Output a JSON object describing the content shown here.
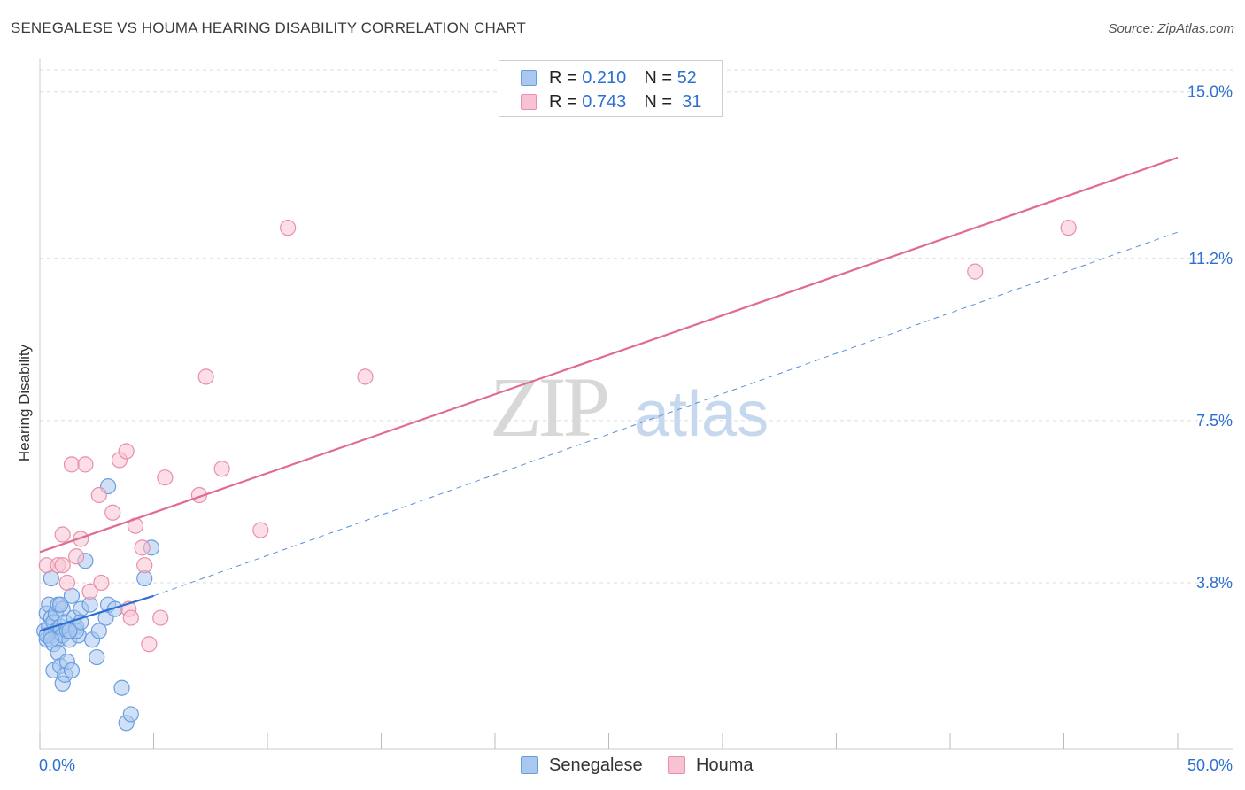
{
  "title": "SENEGALESE VS HOUMA HEARING DISABILITY CORRELATION CHART",
  "source": "Source: ZipAtlas.com",
  "watermark": {
    "zip": "ZIP",
    "atlas": "atlas"
  },
  "legend": {
    "rows": [
      {
        "r_label": "R =",
        "r_value": "0.210",
        "n_label": "N =",
        "n_value": "52",
        "color": "#a9c8f0",
        "border": "#6a9de0"
      },
      {
        "r_label": "R =",
        "r_value": "0.743",
        "n_label": "N =",
        "n_value": "31",
        "color": "#f7c3d2",
        "border": "#e98fab"
      }
    ]
  },
  "bottom_legend": [
    {
      "label": "Senegalese",
      "color": "#a9c8f0",
      "border": "#6a9de0"
    },
    {
      "label": "Houma",
      "color": "#f7c3d2",
      "border": "#e98fab"
    }
  ],
  "chart_data": {
    "type": "scatter",
    "title": "SENEGALESE VS HOUMA HEARING DISABILITY CORRELATION CHART",
    "xlabel": "",
    "ylabel": "Hearing Disability",
    "xlim": [
      0,
      50
    ],
    "ylim": [
      0,
      15.5
    ],
    "x_tick_labels": [
      "0.0%",
      "50.0%"
    ],
    "y_ticks": [
      3.8,
      7.5,
      11.2,
      15.0
    ],
    "y_tick_labels": [
      "3.8%",
      "7.5%",
      "11.2%",
      "15.0%"
    ],
    "grid": true,
    "legend_position": "top-center",
    "series": [
      {
        "name": "Senegalese",
        "color": "#6a9de0",
        "fill": "#a9c8f0",
        "points": [
          [
            0.2,
            2.7
          ],
          [
            0.3,
            3.1
          ],
          [
            0.3,
            2.5
          ],
          [
            0.4,
            2.8
          ],
          [
            0.4,
            3.3
          ],
          [
            0.5,
            2.6
          ],
          [
            0.5,
            3.0
          ],
          [
            0.6,
            2.9
          ],
          [
            0.6,
            2.4
          ],
          [
            0.7,
            3.1
          ],
          [
            0.7,
            2.7
          ],
          [
            0.8,
            2.5
          ],
          [
            0.8,
            3.3
          ],
          [
            0.9,
            2.8
          ],
          [
            1.0,
            2.6
          ],
          [
            1.0,
            3.2
          ],
          [
            1.1,
            2.9
          ],
          [
            1.2,
            2.7
          ],
          [
            1.3,
            2.5
          ],
          [
            1.4,
            3.5
          ],
          [
            1.5,
            3.0
          ],
          [
            1.6,
            2.8
          ],
          [
            1.7,
            2.6
          ],
          [
            1.8,
            3.2
          ],
          [
            0.5,
            3.9
          ],
          [
            0.6,
            1.8
          ],
          [
            0.8,
            2.2
          ],
          [
            0.9,
            1.9
          ],
          [
            1.0,
            1.5
          ],
          [
            1.1,
            1.7
          ],
          [
            1.2,
            2.0
          ],
          [
            1.4,
            1.8
          ],
          [
            1.6,
            2.7
          ],
          [
            1.8,
            2.9
          ],
          [
            2.0,
            4.3
          ],
          [
            2.2,
            3.3
          ],
          [
            2.3,
            2.5
          ],
          [
            2.5,
            2.1
          ],
          [
            2.6,
            2.7
          ],
          [
            2.9,
            3.0
          ],
          [
            3.0,
            3.3
          ],
          [
            3.0,
            6.0
          ],
          [
            3.6,
            1.4
          ],
          [
            0.3,
            2.6
          ],
          [
            0.5,
            2.5
          ],
          [
            0.9,
            3.3
          ],
          [
            1.3,
            2.7
          ],
          [
            3.3,
            3.2
          ],
          [
            3.8,
            0.6
          ],
          [
            4.0,
            0.8
          ],
          [
            4.6,
            3.9
          ],
          [
            4.9,
            4.6
          ]
        ]
      },
      {
        "name": "Houma",
        "color": "#e98fab",
        "fill": "#f7c3d2",
        "points": [
          [
            0.3,
            4.2
          ],
          [
            0.8,
            4.2
          ],
          [
            1.0,
            4.2
          ],
          [
            1.0,
            4.9
          ],
          [
            1.2,
            3.8
          ],
          [
            1.4,
            6.5
          ],
          [
            1.6,
            4.4
          ],
          [
            1.8,
            4.8
          ],
          [
            2.0,
            6.5
          ],
          [
            2.2,
            3.6
          ],
          [
            2.6,
            5.8
          ],
          [
            3.2,
            5.4
          ],
          [
            3.5,
            6.6
          ],
          [
            3.8,
            6.8
          ],
          [
            3.9,
            3.2
          ],
          [
            4.0,
            3.0
          ],
          [
            4.2,
            5.1
          ],
          [
            4.5,
            4.6
          ],
          [
            4.6,
            4.2
          ],
          [
            4.8,
            2.4
          ],
          [
            5.3,
            3.0
          ],
          [
            5.5,
            6.2
          ],
          [
            7.0,
            5.8
          ],
          [
            7.3,
            8.5
          ],
          [
            8.0,
            6.4
          ],
          [
            9.7,
            5.0
          ],
          [
            10.9,
            11.9
          ],
          [
            14.3,
            8.5
          ],
          [
            41.1,
            10.9
          ],
          [
            45.2,
            11.9
          ],
          [
            2.7,
            3.8
          ]
        ]
      }
    ],
    "trend_lines": [
      {
        "series": "Senegalese",
        "from": [
          0,
          2.7
        ],
        "to": [
          5,
          3.5
        ],
        "extended_to": [
          50,
          11.8
        ],
        "style": "solid then dashed"
      },
      {
        "series": "Houma",
        "from": [
          0,
          4.5
        ],
        "to": [
          50,
          13.5
        ],
        "style": "solid"
      }
    ]
  }
}
